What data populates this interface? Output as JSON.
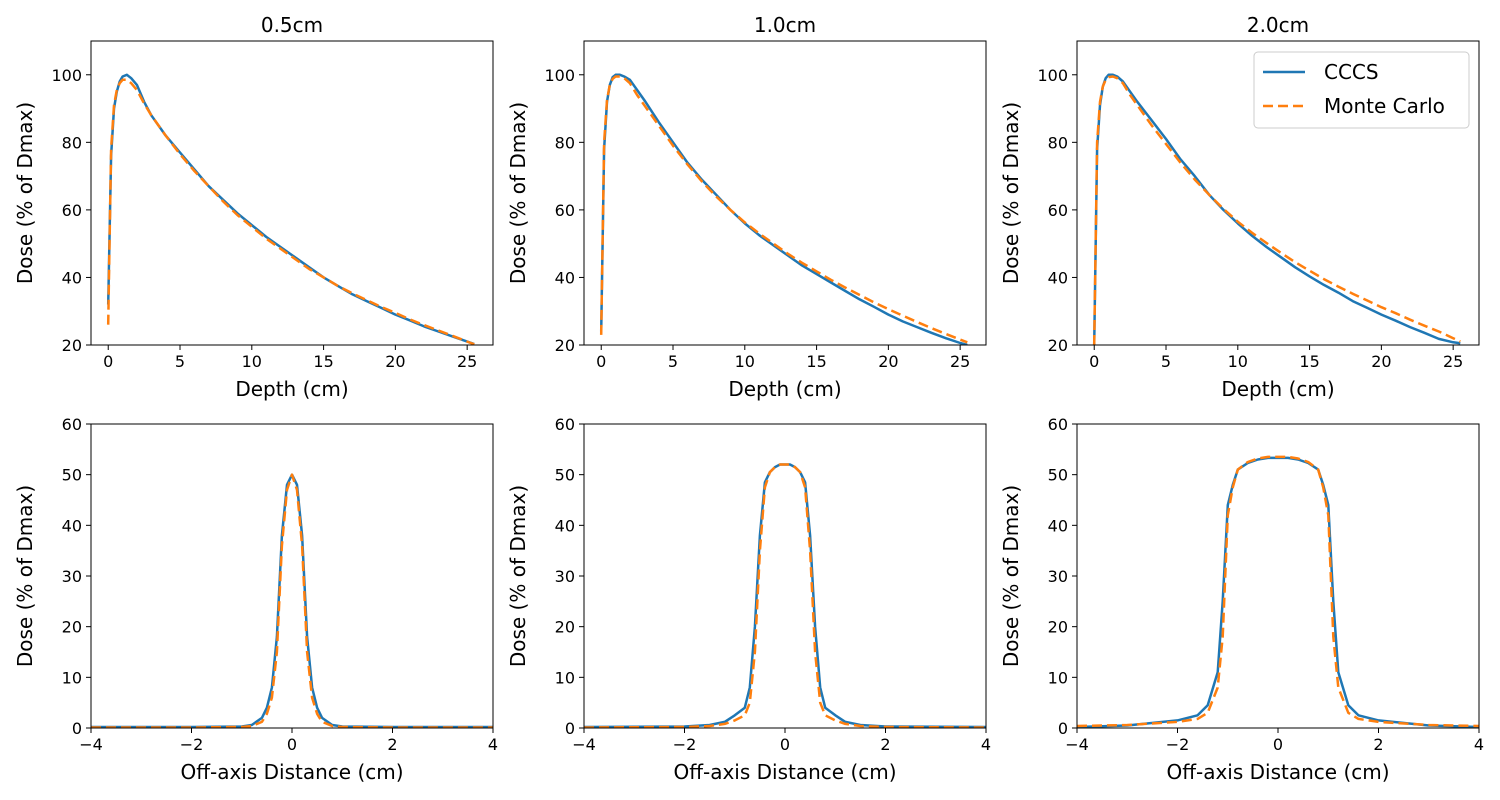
{
  "colors": {
    "cccs": "#1f77b4",
    "monte_carlo": "#ff7f0e"
  },
  "chart_data": [
    {
      "type": "line",
      "title": "0.5cm",
      "xlabel": "Depth (cm)",
      "ylabel": "Dose (% of Dmax)",
      "xlim": [
        -1.2,
        26.8
      ],
      "ylim": [
        20,
        110
      ],
      "xticks": [
        0,
        5,
        10,
        15,
        20,
        25
      ],
      "yticks": [
        20,
        40,
        60,
        80,
        100
      ],
      "series": [
        {
          "name": "CCCS",
          "x": [
            0,
            0.2,
            0.4,
            0.6,
            0.8,
            1.0,
            1.3,
            1.6,
            2.0,
            2.5,
            3,
            4,
            5,
            6,
            7,
            8,
            9,
            10,
            11,
            12,
            13,
            14,
            15,
            16,
            17,
            18,
            19,
            20,
            21,
            22,
            23,
            24,
            25,
            25.5
          ],
          "y": [
            32,
            76,
            90,
            95,
            98,
            99.5,
            100,
            99,
            97,
            92,
            88,
            82,
            77,
            72,
            67,
            63,
            59,
            55.5,
            52,
            49,
            46,
            43,
            40,
            37.5,
            35,
            33,
            31,
            29,
            27.3,
            25.5,
            24,
            22.5,
            21,
            20.3
          ]
        },
        {
          "name": "Monte Carlo",
          "x": [
            0,
            0.2,
            0.4,
            0.6,
            0.8,
            1.0,
            1.3,
            1.6,
            2.0,
            2.5,
            3,
            4,
            5,
            6,
            7,
            8,
            9,
            10,
            11,
            12,
            13,
            14,
            15,
            16,
            17,
            18,
            19,
            20,
            21,
            22,
            23,
            24,
            25,
            25.5
          ],
          "y": [
            26,
            78,
            91,
            95.5,
            97.5,
            98.5,
            98.5,
            97.5,
            95.5,
            91.5,
            88,
            82,
            76.5,
            71.5,
            67,
            62.5,
            58.5,
            55,
            51.5,
            48.5,
            45.5,
            42.5,
            40,
            37.5,
            35.3,
            33.3,
            31.3,
            29.5,
            27.6,
            25.9,
            24.3,
            22.7,
            21,
            20.2
          ]
        }
      ]
    },
    {
      "type": "line",
      "title": "1.0cm",
      "xlabel": "Depth (cm)",
      "ylabel": "Dose (% of Dmax)",
      "xlim": [
        -1.2,
        26.8
      ],
      "ylim": [
        20,
        110
      ],
      "xticks": [
        0,
        5,
        10,
        15,
        20,
        25
      ],
      "yticks": [
        20,
        40,
        60,
        80,
        100
      ],
      "series": [
        {
          "name": "CCCS",
          "x": [
            0,
            0.2,
            0.4,
            0.6,
            0.8,
            1.0,
            1.3,
            1.6,
            2.0,
            2.5,
            3,
            4,
            5,
            6,
            7,
            8,
            9,
            10,
            11,
            12,
            13,
            14,
            15,
            16,
            17,
            18,
            19,
            20,
            21,
            22,
            23,
            24,
            25,
            25.5
          ],
          "y": [
            24,
            78,
            92,
            97,
            99.3,
            100,
            100,
            99.5,
            98.5,
            95.5,
            92.5,
            86,
            80,
            74,
            69,
            64.5,
            60,
            56,
            52.5,
            49.5,
            46.5,
            43.5,
            41,
            38.5,
            36,
            33.5,
            31.3,
            29,
            27,
            25.3,
            23.6,
            22,
            20.6,
            20
          ]
        },
        {
          "name": "Monte Carlo",
          "x": [
            0,
            0.2,
            0.4,
            0.6,
            0.8,
            1.0,
            1.3,
            1.6,
            2.0,
            2.5,
            3,
            4,
            5,
            6,
            7,
            8,
            9,
            10,
            11,
            12,
            13,
            14,
            15,
            16,
            17,
            18,
            19,
            20,
            21,
            22,
            23,
            24,
            25,
            25.5
          ],
          "y": [
            23,
            80,
            92.5,
            97,
            98.8,
            99.5,
            99.5,
            99,
            97.5,
            94,
            91,
            85,
            79,
            73.5,
            68.5,
            64,
            60,
            56.3,
            53,
            50,
            47,
            44.3,
            41.8,
            39.3,
            37,
            34.8,
            32.6,
            30.6,
            28.7,
            26.8,
            25,
            23.3,
            21.6,
            20.8
          ]
        }
      ]
    },
    {
      "type": "line",
      "title": "2.0cm",
      "xlabel": "Depth (cm)",
      "ylabel": "Dose (% of Dmax)",
      "xlim": [
        -1.2,
        26.8
      ],
      "ylim": [
        20,
        110
      ],
      "xticks": [
        0,
        5,
        10,
        15,
        20,
        25
      ],
      "yticks": [
        20,
        40,
        60,
        80,
        100
      ],
      "legend": "top-right",
      "series": [
        {
          "name": "CCCS",
          "x": [
            0,
            0.2,
            0.4,
            0.6,
            0.8,
            1.0,
            1.3,
            1.6,
            2.0,
            2.5,
            3,
            4,
            5,
            6,
            7,
            8,
            9,
            10,
            11,
            12,
            13,
            14,
            15,
            16,
            17,
            18,
            19,
            20,
            21,
            22,
            23,
            24,
            25,
            25.5
          ],
          "y": [
            20,
            78,
            91,
            96.5,
            99,
            100,
            100,
            99.5,
            98,
            95,
            92,
            86.5,
            81,
            75,
            70,
            64.5,
            60,
            56,
            52.3,
            49,
            46,
            43,
            40.3,
            37.8,
            35.5,
            33,
            31,
            29,
            27.2,
            25.3,
            23.6,
            21.8,
            20.8,
            20.5
          ]
        },
        {
          "name": "Monte Carlo",
          "x": [
            0,
            0.2,
            0.4,
            0.6,
            0.8,
            1.0,
            1.3,
            1.6,
            2.0,
            2.5,
            3,
            4,
            5,
            6,
            7,
            8,
            9,
            10,
            11,
            12,
            13,
            14,
            15,
            16,
            17,
            18,
            19,
            20,
            21,
            22,
            23,
            24,
            25,
            25.5
          ],
          "y": [
            20,
            80,
            92,
            96.5,
            98.5,
            99.3,
            99.5,
            99,
            97.5,
            94,
            91,
            85,
            79.5,
            74,
            69,
            64.5,
            60.3,
            56.5,
            53.2,
            50.2,
            47.3,
            44.5,
            42,
            39.5,
            37.3,
            35.2,
            33.2,
            31.2,
            29.4,
            27.5,
            25.7,
            24,
            22,
            21
          ]
        }
      ]
    },
    {
      "type": "line",
      "title": "",
      "xlabel": "Off-axis Distance (cm)",
      "ylabel": "Dose (% of Dmax)",
      "xlim": [
        -4,
        4
      ],
      "ylim": [
        0,
        60
      ],
      "xticks": [
        -4,
        -2,
        0,
        2,
        4
      ],
      "yticks": [
        0,
        10,
        20,
        30,
        40,
        50,
        60
      ],
      "series": [
        {
          "name": "CCCS",
          "x": [
            -4,
            -2,
            -1,
            -0.8,
            -0.6,
            -0.5,
            -0.4,
            -0.3,
            -0.2,
            -0.1,
            0,
            0.1,
            0.2,
            0.3,
            0.4,
            0.5,
            0.6,
            0.8,
            1,
            2,
            4
          ],
          "y": [
            0.2,
            0.2,
            0.3,
            0.6,
            2,
            4,
            8,
            18,
            38,
            48,
            50,
            48,
            38,
            18,
            8,
            4,
            2,
            0.6,
            0.3,
            0.2,
            0.2
          ]
        },
        {
          "name": "Monte Carlo",
          "x": [
            -4,
            -2,
            -1,
            -0.8,
            -0.6,
            -0.5,
            -0.4,
            -0.3,
            -0.2,
            -0.1,
            0,
            0.1,
            0.2,
            0.3,
            0.4,
            0.5,
            0.6,
            0.8,
            1,
            2,
            4
          ],
          "y": [
            0.1,
            0.1,
            0.2,
            0.4,
            1.2,
            2.8,
            6,
            15,
            36,
            47,
            50,
            47,
            36,
            15,
            6,
            2.8,
            1.2,
            0.4,
            0.2,
            0.1,
            0.1
          ]
        }
      ]
    },
    {
      "type": "line",
      "title": "",
      "xlabel": "Off-axis Distance (cm)",
      "ylabel": "Dose (% of Dmax)",
      "xlim": [
        -4,
        4
      ],
      "ylim": [
        0,
        60
      ],
      "xticks": [
        -4,
        -2,
        0,
        2,
        4
      ],
      "yticks": [
        0,
        10,
        20,
        30,
        40,
        50,
        60
      ],
      "series": [
        {
          "name": "CCCS",
          "x": [
            -4,
            -2,
            -1.5,
            -1.2,
            -1,
            -0.8,
            -0.7,
            -0.6,
            -0.5,
            -0.4,
            -0.3,
            -0.2,
            -0.1,
            0,
            0.1,
            0.2,
            0.3,
            0.4,
            0.5,
            0.6,
            0.7,
            0.8,
            1,
            1.2,
            1.5,
            2,
            4
          ],
          "y": [
            0.2,
            0.3,
            0.6,
            1.2,
            2.5,
            4,
            8,
            20,
            38,
            48.5,
            50.5,
            51.5,
            52,
            52,
            52,
            51.5,
            50.5,
            48.5,
            38,
            20,
            8,
            4,
            2.5,
            1.2,
            0.6,
            0.3,
            0.2
          ]
        },
        {
          "name": "Monte Carlo",
          "x": [
            -4,
            -2,
            -1.5,
            -1.2,
            -1,
            -0.8,
            -0.7,
            -0.6,
            -0.5,
            -0.4,
            -0.3,
            -0.2,
            -0.1,
            0,
            0.1,
            0.2,
            0.3,
            0.4,
            0.5,
            0.6,
            0.7,
            0.8,
            1,
            1.2,
            1.5,
            2,
            4
          ],
          "y": [
            0.1,
            0.2,
            0.4,
            0.8,
            1.5,
            2.5,
            5,
            15,
            35,
            47.5,
            50.5,
            51.5,
            52,
            52,
            52,
            51.5,
            50.5,
            47.5,
            35,
            15,
            5,
            2.5,
            1.5,
            0.8,
            0.4,
            0.2,
            0.1
          ]
        }
      ]
    },
    {
      "type": "line",
      "title": "",
      "xlabel": "Off-axis Distance (cm)",
      "ylabel": "Dose (% of Dmax)",
      "xlim": [
        -4,
        4
      ],
      "ylim": [
        0,
        60
      ],
      "xticks": [
        -4,
        -2,
        0,
        2,
        4
      ],
      "yticks": [
        0,
        10,
        20,
        30,
        40,
        50,
        60
      ],
      "series": [
        {
          "name": "CCCS",
          "x": [
            -4,
            -3,
            -2,
            -1.6,
            -1.4,
            -1.2,
            -1.1,
            -1.0,
            -0.9,
            -0.8,
            -0.6,
            -0.4,
            -0.2,
            0,
            0.2,
            0.4,
            0.6,
            0.8,
            0.9,
            1.0,
            1.1,
            1.2,
            1.4,
            1.6,
            2,
            3,
            4
          ],
          "y": [
            0.2,
            0.5,
            1.5,
            2.5,
            4.5,
            11,
            25,
            44,
            48,
            51,
            52.3,
            53,
            53.3,
            53.3,
            53.3,
            53,
            52.3,
            51,
            48,
            44,
            25,
            11,
            4.5,
            2.5,
            1.5,
            0.5,
            0.2
          ]
        },
        {
          "name": "Monte Carlo",
          "x": [
            -4,
            -3,
            -2,
            -1.6,
            -1.4,
            -1.2,
            -1.1,
            -1.0,
            -0.9,
            -0.8,
            -0.6,
            -0.4,
            -0.2,
            0,
            0.2,
            0.4,
            0.6,
            0.8,
            0.9,
            1.0,
            1.1,
            1.2,
            1.4,
            1.6,
            2,
            3,
            4
          ],
          "y": [
            0.4,
            0.6,
            1.2,
            1.8,
            3,
            8,
            18,
            42,
            47.5,
            51,
            52.5,
            53.2,
            53.5,
            53.5,
            53.5,
            53.2,
            52.5,
            51,
            47.5,
            42,
            18,
            8,
            3,
            1.8,
            1.2,
            0.6,
            0.4
          ]
        }
      ]
    }
  ]
}
